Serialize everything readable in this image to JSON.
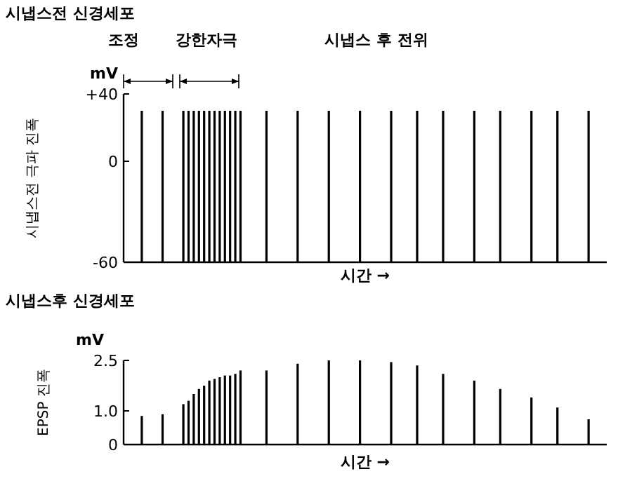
{
  "chart_data": [
    {
      "type": "bar",
      "title": "시냅스전 신경세포",
      "ylabel": "시냅스전 극파 진폭",
      "xlabel": "시간 →",
      "annotations": [
        "조정",
        "강한자극",
        "시냅스 후 전위",
        "mV"
      ],
      "categories": [
        null,
        null,
        null,
        null,
        null,
        null,
        null,
        null,
        null,
        null,
        null,
        null,
        null,
        null,
        null,
        null,
        null,
        null,
        null,
        null,
        null,
        null,
        null,
        null,
        null,
        null,
        null,
        null,
        null,
        null,
        null,
        null,
        null,
        null,
        null,
        null,
        null,
        null,
        null,
        null,
        null,
        null,
        null,
        null,
        null,
        null,
        null,
        null,
        null,
        null,
        null,
        null,
        null,
        null,
        null,
        null,
        null,
        null,
        null,
        null,
        null,
        null,
        null,
        null,
        null,
        null,
        null,
        null,
        null,
        null,
        null,
        null,
        null,
        null,
        null,
        null,
        null,
        null,
        null,
        null,
        null,
        null,
        null,
        null,
        null,
        null,
        null,
        null,
        null,
        null,
        null,
        null,
        null
      ],
      "values": [
        null,
        null,
        null,
        90,
        null,
        null,
        null,
        90,
        null,
        null,
        null,
        90,
        90,
        90,
        90,
        90,
        90,
        90,
        90,
        90,
        90,
        90,
        90,
        null,
        null,
        null,
        null,
        90,
        null,
        null,
        null,
        null,
        null,
        90,
        null,
        null,
        null,
        null,
        null,
        90,
        null,
        null,
        null,
        null,
        null,
        90,
        null,
        null,
        null,
        null,
        null,
        90,
        null,
        null,
        null,
        null,
        90,
        null,
        null,
        null,
        null,
        90,
        null,
        null,
        null,
        null,
        null,
        90,
        null,
        null,
        null,
        null,
        90,
        null,
        null,
        null,
        null,
        null,
        90,
        null,
        null,
        null,
        null,
        90,
        null,
        null,
        null,
        null,
        null,
        90,
        null,
        null,
        null
      ],
      "base": [
        null,
        null,
        null,
        -60,
        null,
        null,
        null,
        -60,
        null,
        null,
        null,
        -60,
        -60,
        -60,
        -60,
        -60,
        -60,
        -60,
        -60,
        -60,
        -60,
        -60,
        -60,
        null,
        null,
        null,
        null,
        -60,
        null,
        null,
        null,
        null,
        null,
        -60,
        null,
        null,
        null,
        null,
        null,
        -60,
        null,
        null,
        null,
        null,
        null,
        -60,
        null,
        null,
        null,
        null,
        null,
        -60,
        null,
        null,
        null,
        null,
        -60,
        null,
        null,
        null,
        null,
        -60,
        null,
        null,
        null,
        null,
        null,
        -60,
        null,
        null,
        null,
        null,
        -60,
        null,
        null,
        null,
        null,
        null,
        -60,
        null,
        null,
        null,
        null,
        -60,
        null,
        null,
        null,
        null,
        null,
        -60,
        null,
        null,
        null
      ],
      "color": "#000000",
      "ylim": [
        -60,
        40
      ],
      "yticks": [
        {
          "value": 40,
          "label": "+40"
        },
        {
          "value": 0,
          "label": "0"
        },
        {
          "value": -60,
          "label": "-60"
        }
      ],
      "tick_labels": "y"
    },
    {
      "type": "bar",
      "title": "시냅스후 신경세포",
      "ylabel": "EPSP 진폭",
      "xlabel": "시간 →",
      "annotations": [
        "mV"
      ],
      "categories": [
        null,
        null,
        null,
        null,
        null,
        null,
        null,
        null,
        null,
        null,
        null,
        null,
        null,
        null,
        null,
        null,
        null,
        null,
        null,
        null,
        null,
        null,
        null,
        null,
        null,
        null,
        null,
        null,
        null,
        null,
        null,
        null,
        null,
        null,
        null,
        null,
        null,
        null,
        null,
        null,
        null,
        null,
        null,
        null,
        null,
        null,
        null,
        null,
        null,
        null,
        null,
        null,
        null,
        null,
        null,
        null,
        null,
        null,
        null,
        null,
        null,
        null,
        null,
        null,
        null,
        null,
        null,
        null,
        null,
        null,
        null,
        null,
        null,
        null,
        null,
        null,
        null,
        null,
        null,
        null,
        null,
        null,
        null,
        null,
        null,
        null,
        null,
        null,
        null,
        null,
        null,
        null,
        null
      ],
      "values": [
        null,
        null,
        null,
        0.85,
        null,
        null,
        null,
        0.9,
        null,
        null,
        null,
        1.2,
        1.3,
        1.5,
        1.65,
        1.75,
        1.9,
        1.95,
        2,
        2.05,
        2.05,
        2.1,
        2.2,
        null,
        null,
        null,
        null,
        2.2,
        null,
        null,
        null,
        null,
        null,
        2.4,
        null,
        null,
        null,
        null,
        null,
        2.5,
        null,
        null,
        null,
        null,
        null,
        2.5,
        null,
        null,
        null,
        null,
        null,
        2.45,
        null,
        null,
        null,
        null,
        2.35,
        null,
        null,
        null,
        null,
        2.1,
        null,
        null,
        null,
        null,
        null,
        1.9,
        null,
        null,
        null,
        null,
        1.65,
        null,
        null,
        null,
        null,
        null,
        1.4,
        null,
        null,
        null,
        null,
        1.1,
        null,
        null,
        null,
        null,
        null,
        0.75,
        null,
        null,
        null
      ],
      "color": "#000000",
      "ylim": [
        0,
        2.5
      ],
      "yticks": [
        {
          "value": 2.5,
          "label": "2.5"
        },
        {
          "value": 1,
          "label": "1.0"
        },
        {
          "value": 0,
          "label": "0"
        }
      ],
      "tick_labels": "y"
    }
  ]
}
